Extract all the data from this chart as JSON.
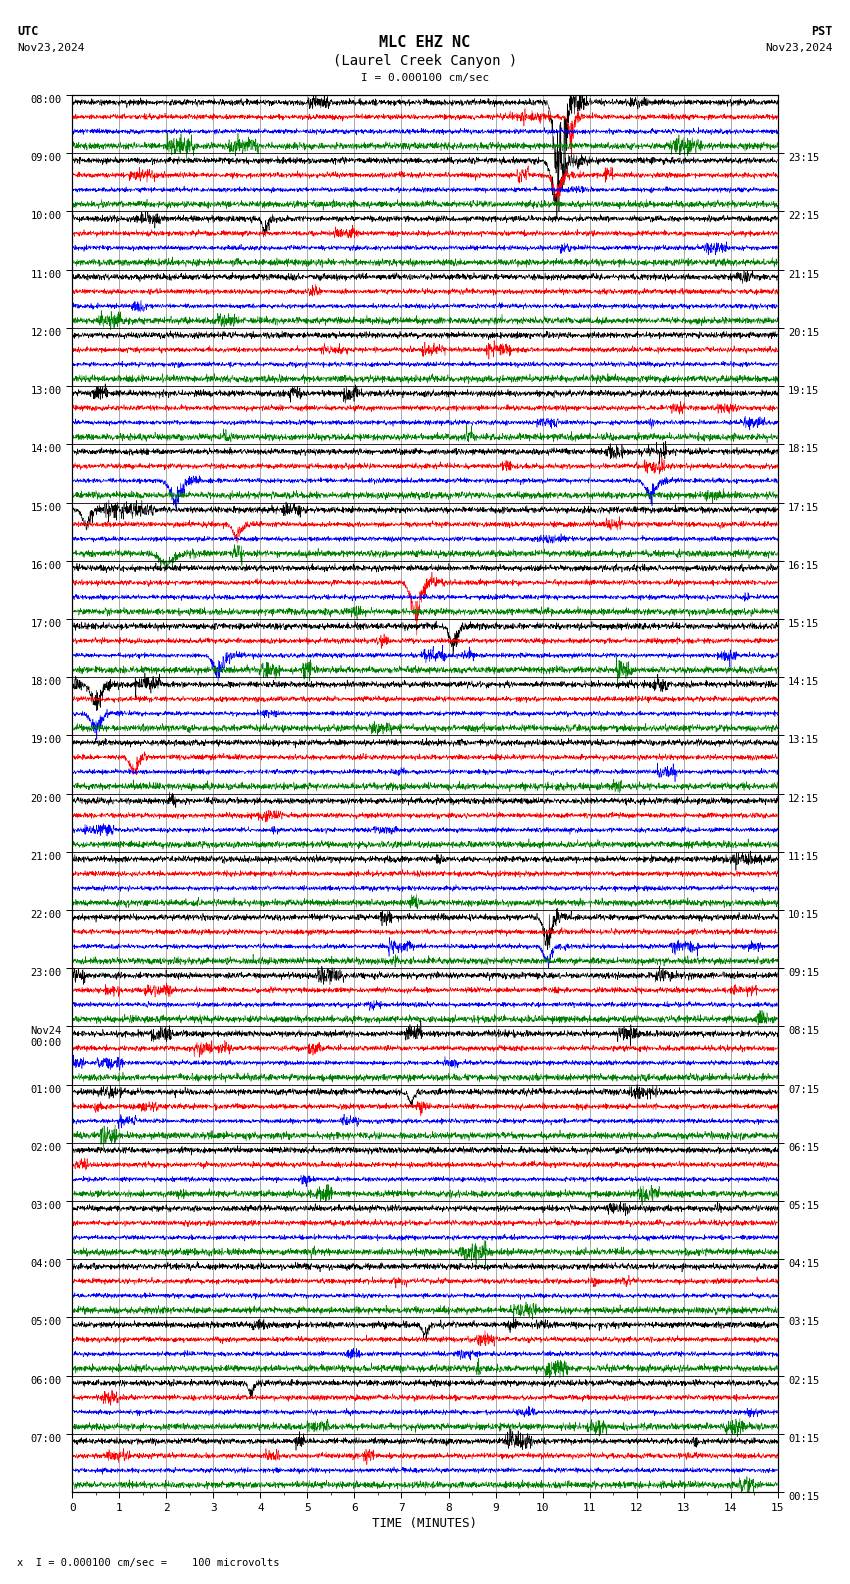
{
  "title_line1": "MLC EHZ NC",
  "title_line2": "(Laurel Creek Canyon )",
  "scale_label": "I = 0.000100 cm/sec",
  "utc_label": "UTC",
  "pst_label": "PST",
  "date_left": "Nov23,2024",
  "date_right": "Nov23,2024",
  "xlabel": "TIME (MINUTES)",
  "footer": "x  I = 0.000100 cm/sec =    100 microvolts",
  "bg_color": "#ffffff",
  "trace_colors": [
    "black",
    "red",
    "blue",
    "green"
  ],
  "left_times": [
    "08:00",
    "09:00",
    "10:00",
    "11:00",
    "12:00",
    "13:00",
    "14:00",
    "15:00",
    "16:00",
    "17:00",
    "18:00",
    "19:00",
    "20:00",
    "21:00",
    "22:00",
    "23:00",
    "Nov24\n00:00",
    "01:00",
    "02:00",
    "03:00",
    "04:00",
    "05:00",
    "06:00",
    "07:00"
  ],
  "right_times": [
    "00:15",
    "01:15",
    "02:15",
    "03:15",
    "04:15",
    "05:15",
    "06:15",
    "07:15",
    "08:15",
    "09:15",
    "10:15",
    "11:15",
    "12:15",
    "13:15",
    "14:15",
    "15:15",
    "16:15",
    "17:15",
    "18:15",
    "19:15",
    "20:15",
    "21:15",
    "22:15",
    "23:15"
  ],
  "n_rows": 24,
  "n_traces_per_row": 4,
  "xmin": 0,
  "xmax": 15,
  "noise_scale": 0.25,
  "seed": 42,
  "n_points": 2700,
  "events": [
    [
      0,
      10.3,
      0,
      12.0,
      0.08
    ],
    [
      0,
      10.45,
      0,
      10.0,
      0.06
    ],
    [
      0,
      10.6,
      1,
      5.0,
      0.05
    ],
    [
      1,
      10.3,
      0,
      8.0,
      0.1
    ],
    [
      1,
      10.3,
      1,
      4.0,
      0.08
    ],
    [
      2,
      4.1,
      0,
      3.0,
      0.05
    ],
    [
      6,
      2.2,
      2,
      4.0,
      0.12
    ],
    [
      6,
      12.3,
      2,
      3.0,
      0.1
    ],
    [
      7,
      0.3,
      0,
      3.0,
      0.08
    ],
    [
      7,
      3.5,
      1,
      2.5,
      0.08
    ],
    [
      7,
      2.0,
      3,
      2.0,
      0.15
    ],
    [
      8,
      7.3,
      1,
      6.0,
      0.1
    ],
    [
      9,
      8.1,
      0,
      4.0,
      0.08
    ],
    [
      9,
      3.1,
      2,
      3.5,
      0.1
    ],
    [
      10,
      0.5,
      0,
      4.0,
      0.1
    ],
    [
      10,
      0.5,
      2,
      3.0,
      0.1
    ],
    [
      11,
      1.3,
      1,
      2.5,
      0.08
    ],
    [
      14,
      10.1,
      0,
      5.0,
      0.08
    ],
    [
      14,
      10.1,
      2,
      3.0,
      0.08
    ],
    [
      17,
      7.2,
      0,
      2.0,
      0.06
    ],
    [
      21,
      7.5,
      0,
      2.0,
      0.06
    ],
    [
      22,
      3.8,
      0,
      2.0,
      0.06
    ]
  ]
}
